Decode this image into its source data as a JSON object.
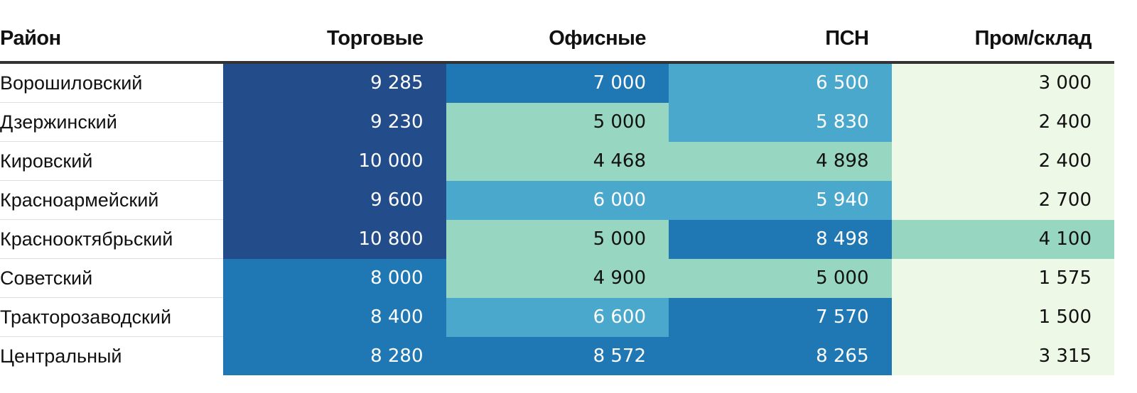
{
  "chart_data": {
    "type": "table",
    "header": {
      "district": "Район",
      "columns": [
        "Торговые",
        "Офисные",
        "ПСН",
        "Пром/склад"
      ]
    },
    "rows": [
      {
        "district": "Ворошиловский",
        "values": [
          9285,
          7000,
          6500,
          3000
        ],
        "labels": [
          "9 285",
          "7 000",
          "6 500",
          "3 000"
        ]
      },
      {
        "district": "Дзержинский",
        "values": [
          9230,
          5000,
          5830,
          2400
        ],
        "labels": [
          "9 230",
          "5 000",
          "5 830",
          "2 400"
        ]
      },
      {
        "district": "Кировский",
        "values": [
          10000,
          4468,
          4898,
          2400
        ],
        "labels": [
          "10 000",
          "4 468",
          "4 898",
          "2 400"
        ]
      },
      {
        "district": "Красноармейский",
        "values": [
          9600,
          6000,
          5940,
          2700
        ],
        "labels": [
          "9 600",
          "6 000",
          "5 940",
          "2 700"
        ]
      },
      {
        "district": "Краснооктябрьский",
        "values": [
          10800,
          5000,
          8498,
          4100
        ],
        "labels": [
          "10 800",
          "5 000",
          "8 498",
          "4 100"
        ]
      },
      {
        "district": "Советский",
        "values": [
          8000,
          4900,
          5000,
          1575
        ],
        "labels": [
          "8 000",
          "4 900",
          "5 000",
          "1 575"
        ]
      },
      {
        "district": "Тракторозаводский",
        "values": [
          8400,
          6600,
          7570,
          1500
        ],
        "labels": [
          "8 400",
          "6 600",
          "7 570",
          "1 500"
        ]
      },
      {
        "district": "Центральный",
        "values": [
          8280,
          8572,
          8265,
          3315
        ],
        "labels": [
          "8 280",
          "8 572",
          "8 265",
          "3 315"
        ]
      }
    ],
    "color_scale": {
      "thresholds": [
        4000,
        5500,
        7000,
        9000
      ],
      "colors": [
        "#eef8e6",
        "#97d6c0",
        "#4aa8cc",
        "#1f77b4",
        "#234c8a"
      ],
      "text_colors": [
        "#111111",
        "#111111",
        "#ffffff",
        "#ffffff",
        "#ffffff"
      ]
    }
  }
}
